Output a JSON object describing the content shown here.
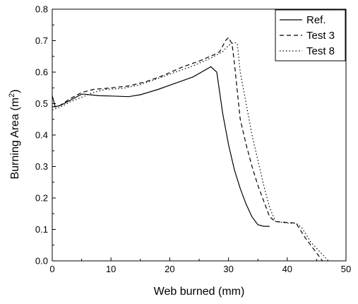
{
  "chart_data": {
    "type": "line",
    "xlabel": "Web burned (mm)",
    "ylabel_main": "Burning Area (m",
    "ylabel_sup": "2",
    "ylabel_close": ")",
    "xlim": [
      0,
      50
    ],
    "ylim": [
      0.0,
      0.8
    ],
    "xticks": [
      "0",
      "10",
      "20",
      "30",
      "40",
      "50"
    ],
    "yticks": [
      "0.0",
      "0.1",
      "0.2",
      "0.3",
      "0.4",
      "0.5",
      "0.6",
      "0.7",
      "0.8"
    ],
    "grid": false,
    "legend_position": "top-right",
    "series": [
      {
        "name": "Ref.",
        "style": "solid",
        "points": [
          [
            0,
            0.525
          ],
          [
            0.5,
            0.49
          ],
          [
            1.5,
            0.495
          ],
          [
            3,
            0.51
          ],
          [
            5,
            0.53
          ],
          [
            5.5,
            0.53
          ],
          [
            8,
            0.525
          ],
          [
            10,
            0.524
          ],
          [
            13,
            0.522
          ],
          [
            15,
            0.528
          ],
          [
            18,
            0.545
          ],
          [
            21,
            0.565
          ],
          [
            24,
            0.585
          ],
          [
            27,
            0.617
          ],
          [
            28,
            0.6
          ],
          [
            29,
            0.47
          ],
          [
            30,
            0.37
          ],
          [
            31,
            0.29
          ],
          [
            32,
            0.23
          ],
          [
            33,
            0.18
          ],
          [
            34,
            0.14
          ],
          [
            35,
            0.115
          ],
          [
            36,
            0.11
          ],
          [
            37,
            0.11
          ]
        ]
      },
      {
        "name": "Test 3",
        "style": "dashed",
        "points": [
          [
            0,
            0.49
          ],
          [
            1,
            0.49
          ],
          [
            3,
            0.515
          ],
          [
            5,
            0.535
          ],
          [
            7,
            0.545
          ],
          [
            9,
            0.548
          ],
          [
            11,
            0.552
          ],
          [
            13,
            0.556
          ],
          [
            16,
            0.57
          ],
          [
            19,
            0.59
          ],
          [
            22,
            0.615
          ],
          [
            25,
            0.635
          ],
          [
            27.5,
            0.655
          ],
          [
            28.5,
            0.665
          ],
          [
            29.5,
            0.7
          ],
          [
            30,
            0.71
          ],
          [
            30.6,
            0.69
          ],
          [
            31,
            0.63
          ],
          [
            32,
            0.45
          ],
          [
            33,
            0.37
          ],
          [
            34,
            0.3
          ],
          [
            35,
            0.24
          ],
          [
            36,
            0.19
          ],
          [
            37,
            0.14
          ],
          [
            38,
            0.125
          ],
          [
            40,
            0.122
          ],
          [
            41.5,
            0.12
          ],
          [
            43,
            0.075
          ],
          [
            44,
            0.05
          ],
          [
            45,
            0.025
          ],
          [
            46,
            0.0
          ]
        ]
      },
      {
        "name": "Test 8",
        "style": "dotted",
        "points": [
          [
            0,
            0.48
          ],
          [
            1.5,
            0.49
          ],
          [
            3,
            0.505
          ],
          [
            5,
            0.52
          ],
          [
            7,
            0.535
          ],
          [
            9,
            0.545
          ],
          [
            12,
            0.548
          ],
          [
            15,
            0.56
          ],
          [
            18,
            0.58
          ],
          [
            21,
            0.6
          ],
          [
            24,
            0.62
          ],
          [
            27,
            0.645
          ],
          [
            29,
            0.665
          ],
          [
            30,
            0.685
          ],
          [
            31,
            0.695
          ],
          [
            31.5,
            0.69
          ],
          [
            32,
            0.6
          ],
          [
            33,
            0.5
          ],
          [
            34,
            0.4
          ],
          [
            35,
            0.32
          ],
          [
            36,
            0.24
          ],
          [
            37,
            0.17
          ],
          [
            38,
            0.125
          ],
          [
            40,
            0.12
          ],
          [
            41.5,
            0.12
          ],
          [
            42.5,
            0.105
          ],
          [
            44,
            0.06
          ],
          [
            45,
            0.04
          ],
          [
            46,
            0.02
          ],
          [
            47,
            0.0
          ]
        ]
      }
    ]
  }
}
